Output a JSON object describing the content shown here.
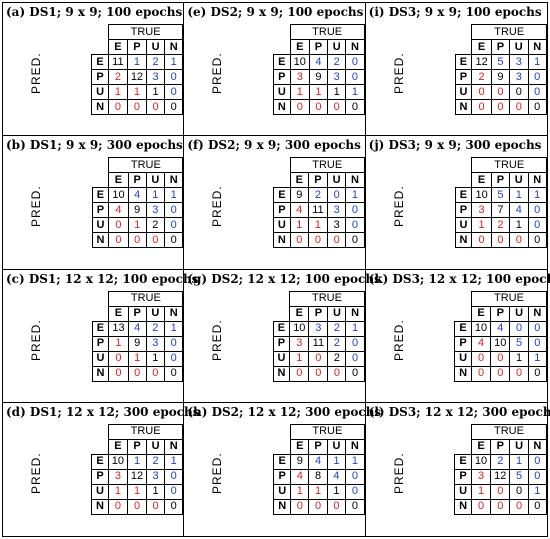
{
  "labels": {
    "true": "TRUE",
    "pred": "PRED.",
    "classes": [
      "E",
      "P",
      "U",
      "N"
    ]
  },
  "colors": {
    "diagonal": "#000000",
    "upper": "#1f3fd6",
    "lower": "#e02020"
  },
  "panels": [
    {
      "title": "(a) DS1; 9 x 9; 100 epochs",
      "matrix": [
        [
          11,
          1,
          2,
          1
        ],
        [
          2,
          12,
          3,
          0
        ],
        [
          1,
          1,
          1,
          0
        ],
        [
          0,
          0,
          0,
          0
        ]
      ]
    },
    {
      "title": "(e) DS2; 9 x 9; 100 epochs",
      "matrix": [
        [
          10,
          4,
          2,
          0
        ],
        [
          3,
          9,
          3,
          0
        ],
        [
          1,
          1,
          1,
          1
        ],
        [
          0,
          0,
          0,
          0
        ]
      ]
    },
    {
      "title": "(i) DS3; 9 x 9; 100 epochs",
      "matrix": [
        [
          12,
          5,
          3,
          1
        ],
        [
          2,
          9,
          3,
          0
        ],
        [
          0,
          0,
          0,
          0
        ],
        [
          0,
          0,
          0,
          0
        ]
      ]
    },
    {
      "title": "(b) DS1; 9 x 9; 300 epochs",
      "matrix": [
        [
          10,
          4,
          1,
          1
        ],
        [
          4,
          9,
          3,
          0
        ],
        [
          0,
          1,
          2,
          0
        ],
        [
          0,
          0,
          0,
          0
        ]
      ]
    },
    {
      "title": "(f) DS2; 9 x 9; 300 epochs",
      "matrix": [
        [
          9,
          2,
          0,
          1
        ],
        [
          4,
          11,
          3,
          0
        ],
        [
          1,
          1,
          3,
          0
        ],
        [
          0,
          0,
          0,
          0
        ]
      ]
    },
    {
      "title": "(j) DS3; 9 x 9; 300 epochs",
      "matrix": [
        [
          10,
          5,
          1,
          1
        ],
        [
          3,
          7,
          4,
          0
        ],
        [
          1,
          2,
          1,
          0
        ],
        [
          0,
          0,
          0,
          0
        ]
      ]
    },
    {
      "title": "(c) DS1; 12 x 12; 100 epochs",
      "matrix": [
        [
          13,
          4,
          2,
          1
        ],
        [
          1,
          9,
          3,
          0
        ],
        [
          0,
          1,
          1,
          0
        ],
        [
          0,
          0,
          0,
          0
        ]
      ]
    },
    {
      "title": "(g) DS2; 12 x 12; 100 epochs",
      "matrix": [
        [
          10,
          3,
          2,
          1
        ],
        [
          3,
          11,
          2,
          0
        ],
        [
          1,
          0,
          2,
          0
        ],
        [
          0,
          0,
          0,
          0
        ]
      ]
    },
    {
      "title": "(k) DS3; 12 x 12; 100 epochs",
      "matrix": [
        [
          10,
          4,
          0,
          0
        ],
        [
          4,
          10,
          5,
          0
        ],
        [
          0,
          0,
          1,
          1
        ],
        [
          0,
          0,
          0,
          0
        ]
      ]
    },
    {
      "title": "(d) DS1; 12 x 12; 300 epochs",
      "matrix": [
        [
          10,
          1,
          2,
          1
        ],
        [
          3,
          12,
          3,
          0
        ],
        [
          1,
          1,
          1,
          0
        ],
        [
          0,
          0,
          0,
          0
        ]
      ]
    },
    {
      "title": "(h) DS2; 12 x 12; 300 epochs",
      "matrix": [
        [
          9,
          4,
          1,
          1
        ],
        [
          4,
          8,
          4,
          0
        ],
        [
          1,
          1,
          1,
          0
        ],
        [
          0,
          0,
          0,
          0
        ]
      ]
    },
    {
      "title": "(l) DS3; 12 x 12; 300 epochs",
      "matrix": [
        [
          10,
          2,
          1,
          0
        ],
        [
          3,
          12,
          5,
          0
        ],
        [
          1,
          0,
          0,
          1
        ],
        [
          0,
          0,
          0,
          0
        ]
      ]
    }
  ]
}
